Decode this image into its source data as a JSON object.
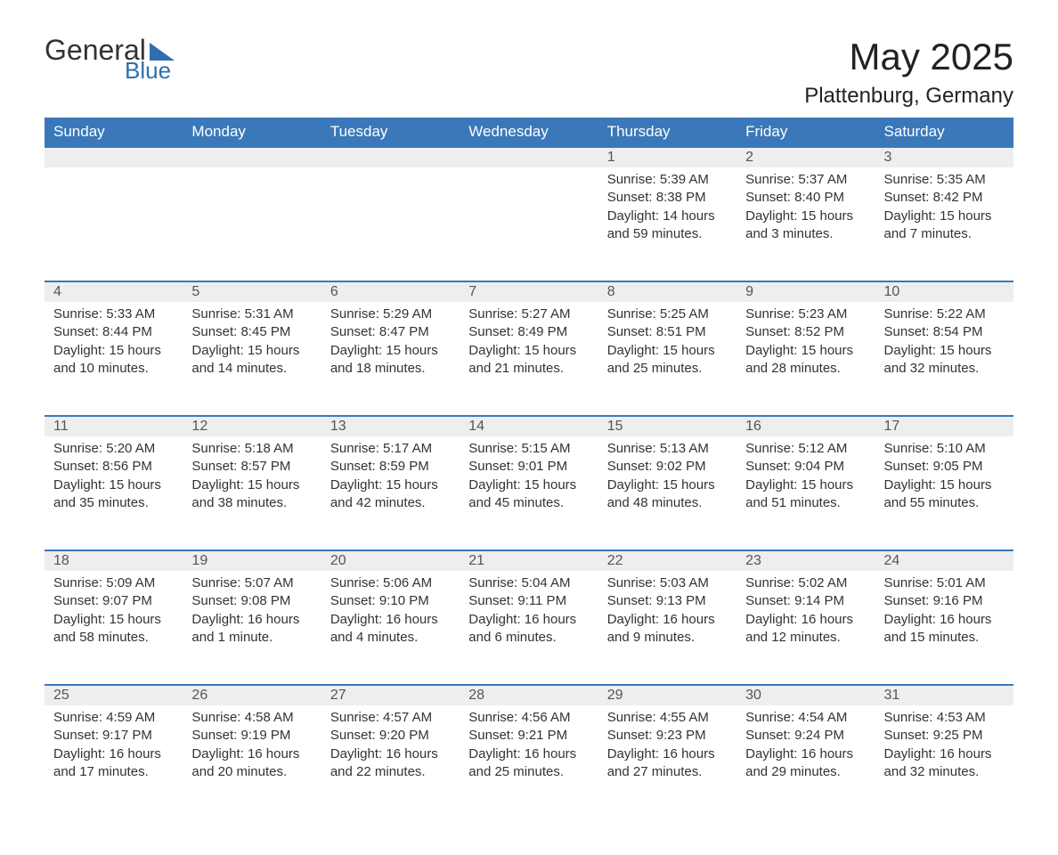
{
  "logo": {
    "word1": "General",
    "word2": "Blue"
  },
  "header": {
    "month_title": "May 2025",
    "location": "Plattenburg, Germany"
  },
  "colors": {
    "header_bg": "#3a78b9",
    "header_text": "#ffffff",
    "daynum_bg": "#eeeeee",
    "row_border": "#3a78b9",
    "body_text": "#333333",
    "logo_accent": "#2f6fb0",
    "page_bg": "#ffffff"
  },
  "typography": {
    "title_fontsize_pt": 32,
    "location_fontsize_pt": 18,
    "dayhdr_fontsize_pt": 13,
    "cell_fontsize_pt": 11
  },
  "calendar": {
    "day_headers": [
      "Sunday",
      "Monday",
      "Tuesday",
      "Wednesday",
      "Thursday",
      "Friday",
      "Saturday"
    ],
    "first_day_column": 4,
    "days": [
      {
        "n": 1,
        "sunrise": "5:39 AM",
        "sunset": "8:38 PM",
        "daylight": "14 hours and 59 minutes."
      },
      {
        "n": 2,
        "sunrise": "5:37 AM",
        "sunset": "8:40 PM",
        "daylight": "15 hours and 3 minutes."
      },
      {
        "n": 3,
        "sunrise": "5:35 AM",
        "sunset": "8:42 PM",
        "daylight": "15 hours and 7 minutes."
      },
      {
        "n": 4,
        "sunrise": "5:33 AM",
        "sunset": "8:44 PM",
        "daylight": "15 hours and 10 minutes."
      },
      {
        "n": 5,
        "sunrise": "5:31 AM",
        "sunset": "8:45 PM",
        "daylight": "15 hours and 14 minutes."
      },
      {
        "n": 6,
        "sunrise": "5:29 AM",
        "sunset": "8:47 PM",
        "daylight": "15 hours and 18 minutes."
      },
      {
        "n": 7,
        "sunrise": "5:27 AM",
        "sunset": "8:49 PM",
        "daylight": "15 hours and 21 minutes."
      },
      {
        "n": 8,
        "sunrise": "5:25 AM",
        "sunset": "8:51 PM",
        "daylight": "15 hours and 25 minutes."
      },
      {
        "n": 9,
        "sunrise": "5:23 AM",
        "sunset": "8:52 PM",
        "daylight": "15 hours and 28 minutes."
      },
      {
        "n": 10,
        "sunrise": "5:22 AM",
        "sunset": "8:54 PM",
        "daylight": "15 hours and 32 minutes."
      },
      {
        "n": 11,
        "sunrise": "5:20 AM",
        "sunset": "8:56 PM",
        "daylight": "15 hours and 35 minutes."
      },
      {
        "n": 12,
        "sunrise": "5:18 AM",
        "sunset": "8:57 PM",
        "daylight": "15 hours and 38 minutes."
      },
      {
        "n": 13,
        "sunrise": "5:17 AM",
        "sunset": "8:59 PM",
        "daylight": "15 hours and 42 minutes."
      },
      {
        "n": 14,
        "sunrise": "5:15 AM",
        "sunset": "9:01 PM",
        "daylight": "15 hours and 45 minutes."
      },
      {
        "n": 15,
        "sunrise": "5:13 AM",
        "sunset": "9:02 PM",
        "daylight": "15 hours and 48 minutes."
      },
      {
        "n": 16,
        "sunrise": "5:12 AM",
        "sunset": "9:04 PM",
        "daylight": "15 hours and 51 minutes."
      },
      {
        "n": 17,
        "sunrise": "5:10 AM",
        "sunset": "9:05 PM",
        "daylight": "15 hours and 55 minutes."
      },
      {
        "n": 18,
        "sunrise": "5:09 AM",
        "sunset": "9:07 PM",
        "daylight": "15 hours and 58 minutes."
      },
      {
        "n": 19,
        "sunrise": "5:07 AM",
        "sunset": "9:08 PM",
        "daylight": "16 hours and 1 minute."
      },
      {
        "n": 20,
        "sunrise": "5:06 AM",
        "sunset": "9:10 PM",
        "daylight": "16 hours and 4 minutes."
      },
      {
        "n": 21,
        "sunrise": "5:04 AM",
        "sunset": "9:11 PM",
        "daylight": "16 hours and 6 minutes."
      },
      {
        "n": 22,
        "sunrise": "5:03 AM",
        "sunset": "9:13 PM",
        "daylight": "16 hours and 9 minutes."
      },
      {
        "n": 23,
        "sunrise": "5:02 AM",
        "sunset": "9:14 PM",
        "daylight": "16 hours and 12 minutes."
      },
      {
        "n": 24,
        "sunrise": "5:01 AM",
        "sunset": "9:16 PM",
        "daylight": "16 hours and 15 minutes."
      },
      {
        "n": 25,
        "sunrise": "4:59 AM",
        "sunset": "9:17 PM",
        "daylight": "16 hours and 17 minutes."
      },
      {
        "n": 26,
        "sunrise": "4:58 AM",
        "sunset": "9:19 PM",
        "daylight": "16 hours and 20 minutes."
      },
      {
        "n": 27,
        "sunrise": "4:57 AM",
        "sunset": "9:20 PM",
        "daylight": "16 hours and 22 minutes."
      },
      {
        "n": 28,
        "sunrise": "4:56 AM",
        "sunset": "9:21 PM",
        "daylight": "16 hours and 25 minutes."
      },
      {
        "n": 29,
        "sunrise": "4:55 AM",
        "sunset": "9:23 PM",
        "daylight": "16 hours and 27 minutes."
      },
      {
        "n": 30,
        "sunrise": "4:54 AM",
        "sunset": "9:24 PM",
        "daylight": "16 hours and 29 minutes."
      },
      {
        "n": 31,
        "sunrise": "4:53 AM",
        "sunset": "9:25 PM",
        "daylight": "16 hours and 32 minutes."
      }
    ],
    "labels": {
      "sunrise": "Sunrise: ",
      "sunset": "Sunset: ",
      "daylight": "Daylight: "
    }
  }
}
